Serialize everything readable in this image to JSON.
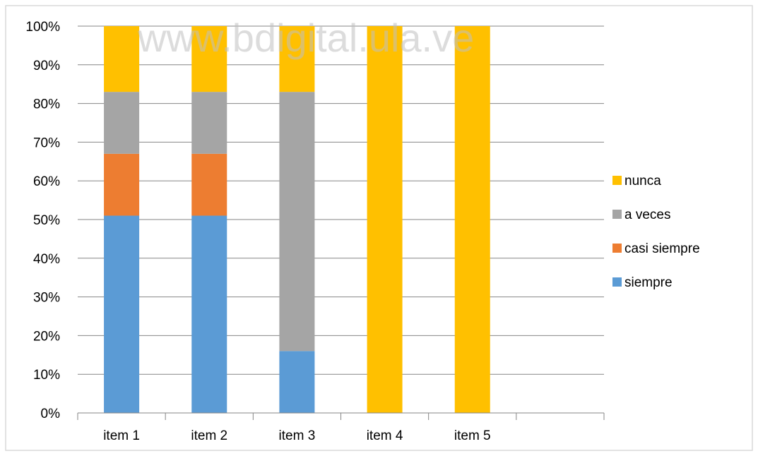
{
  "watermark": "www.bdigital.ula.ve",
  "chart_data": {
    "type": "bar",
    "stacked": true,
    "categories": [
      "item 1",
      "item 2",
      "item 3",
      "item 4",
      "item 5",
      ""
    ],
    "series": [
      {
        "name": "siempre",
        "color": "#5b9bd5",
        "values": [
          51,
          51,
          16,
          0,
          0,
          0
        ]
      },
      {
        "name": "casi siempre",
        "color": "#ed7d31",
        "values": [
          16,
          16,
          0,
          0,
          0,
          0
        ]
      },
      {
        "name": "a veces",
        "color": "#a5a5a5",
        "values": [
          16,
          16,
          67,
          0,
          0,
          0
        ]
      },
      {
        "name": "nunca",
        "color": "#ffc000",
        "values": [
          17,
          17,
          17,
          100,
          100,
          0
        ]
      }
    ],
    "y_tick_labels": [
      "0%",
      "10%",
      "20%",
      "30%",
      "40%",
      "50%",
      "60%",
      "70%",
      "80%",
      "90%",
      "100%"
    ],
    "ylim": [
      0,
      100
    ],
    "grid": true,
    "legend_position": "right",
    "title": "",
    "xlabel": "",
    "ylabel": ""
  }
}
